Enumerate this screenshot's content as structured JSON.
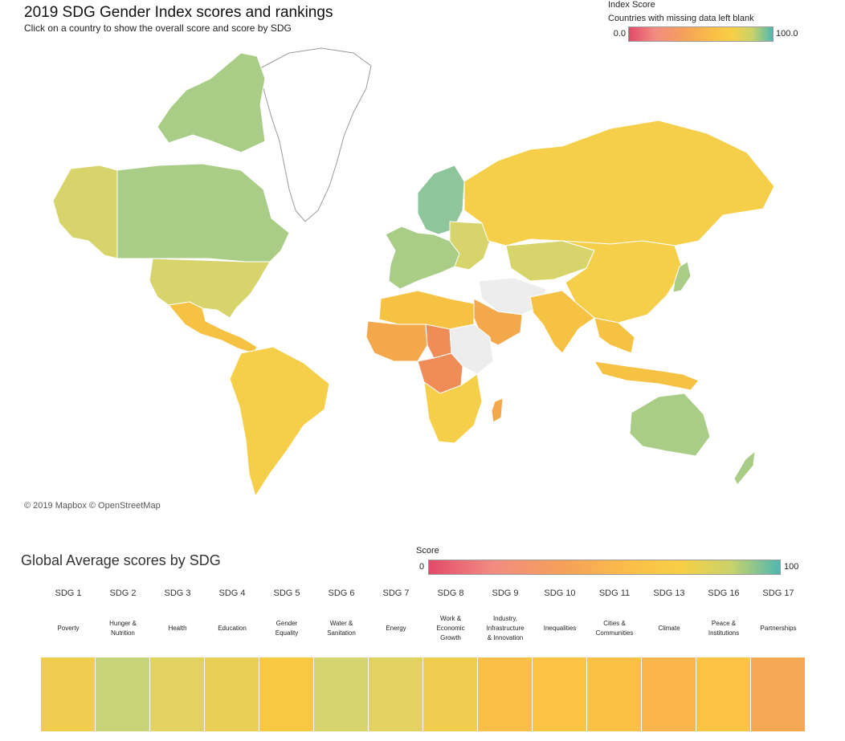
{
  "header": {
    "title": "2019 SDG Gender Index scores and rankings",
    "subtitle": "Click on a country to show the overall score and score by SDG"
  },
  "legend": {
    "title": "Index Score",
    "note": "Countries with missing data left blank",
    "min_label": "0.0",
    "max_label": "100.0"
  },
  "map": {
    "attribution": "© 2019 Mapbox © OpenStreetMap",
    "colors": {
      "green": "#a9cd87",
      "teal_green": "#8ec59a",
      "yellow_green": "#d7d46c",
      "yellow": "#f5cf4a",
      "gold": "#f6c244",
      "orange": "#f4a84c",
      "dark_orange": "#ef8c57",
      "grey": "#ededed"
    }
  },
  "sdg_section": {
    "title": "Global Average scores by SDG",
    "score_label": "Score",
    "score_min": "0",
    "score_max": "100"
  },
  "sdgs": [
    {
      "code": "SDG 1",
      "name": "Poverty",
      "color": "#f0cd4f"
    },
    {
      "code": "SDG 2",
      "name": "Hunger &\nNutrition",
      "color": "#c8d47a"
    },
    {
      "code": "SDG 3",
      "name": "Health",
      "color": "#e2d262"
    },
    {
      "code": "SDG 4",
      "name": "Education",
      "color": "#eacf57"
    },
    {
      "code": "SDG 5",
      "name": "Gender\nEquality",
      "color": "#f8c843"
    },
    {
      "code": "SDG 6",
      "name": "Water &\nSanitation",
      "color": "#d6d46e"
    },
    {
      "code": "SDG 7",
      "name": "Energy",
      "color": "#e3d262"
    },
    {
      "code": "SDG 8",
      "name": "Work &\nEconomic\nGrowth",
      "color": "#f0cd4e"
    },
    {
      "code": "SDG 9",
      "name": "Industry,\nInfrastructure\n& Innovation",
      "color": "#fbbf48"
    },
    {
      "code": "SDG 10",
      "name": "Inequalities",
      "color": "#fbc445"
    },
    {
      "code": "SDG 11",
      "name": "Cities &\nCommunities",
      "color": "#fbc146"
    },
    {
      "code": "SDG 13",
      "name": "Climate",
      "color": "#fab54c"
    },
    {
      "code": "SDG 16",
      "name": "Peace &\nInstitutions",
      "color": "#fbc445"
    },
    {
      "code": "SDG 17",
      "name": "Partnerships",
      "color": "#f5a853"
    }
  ]
}
